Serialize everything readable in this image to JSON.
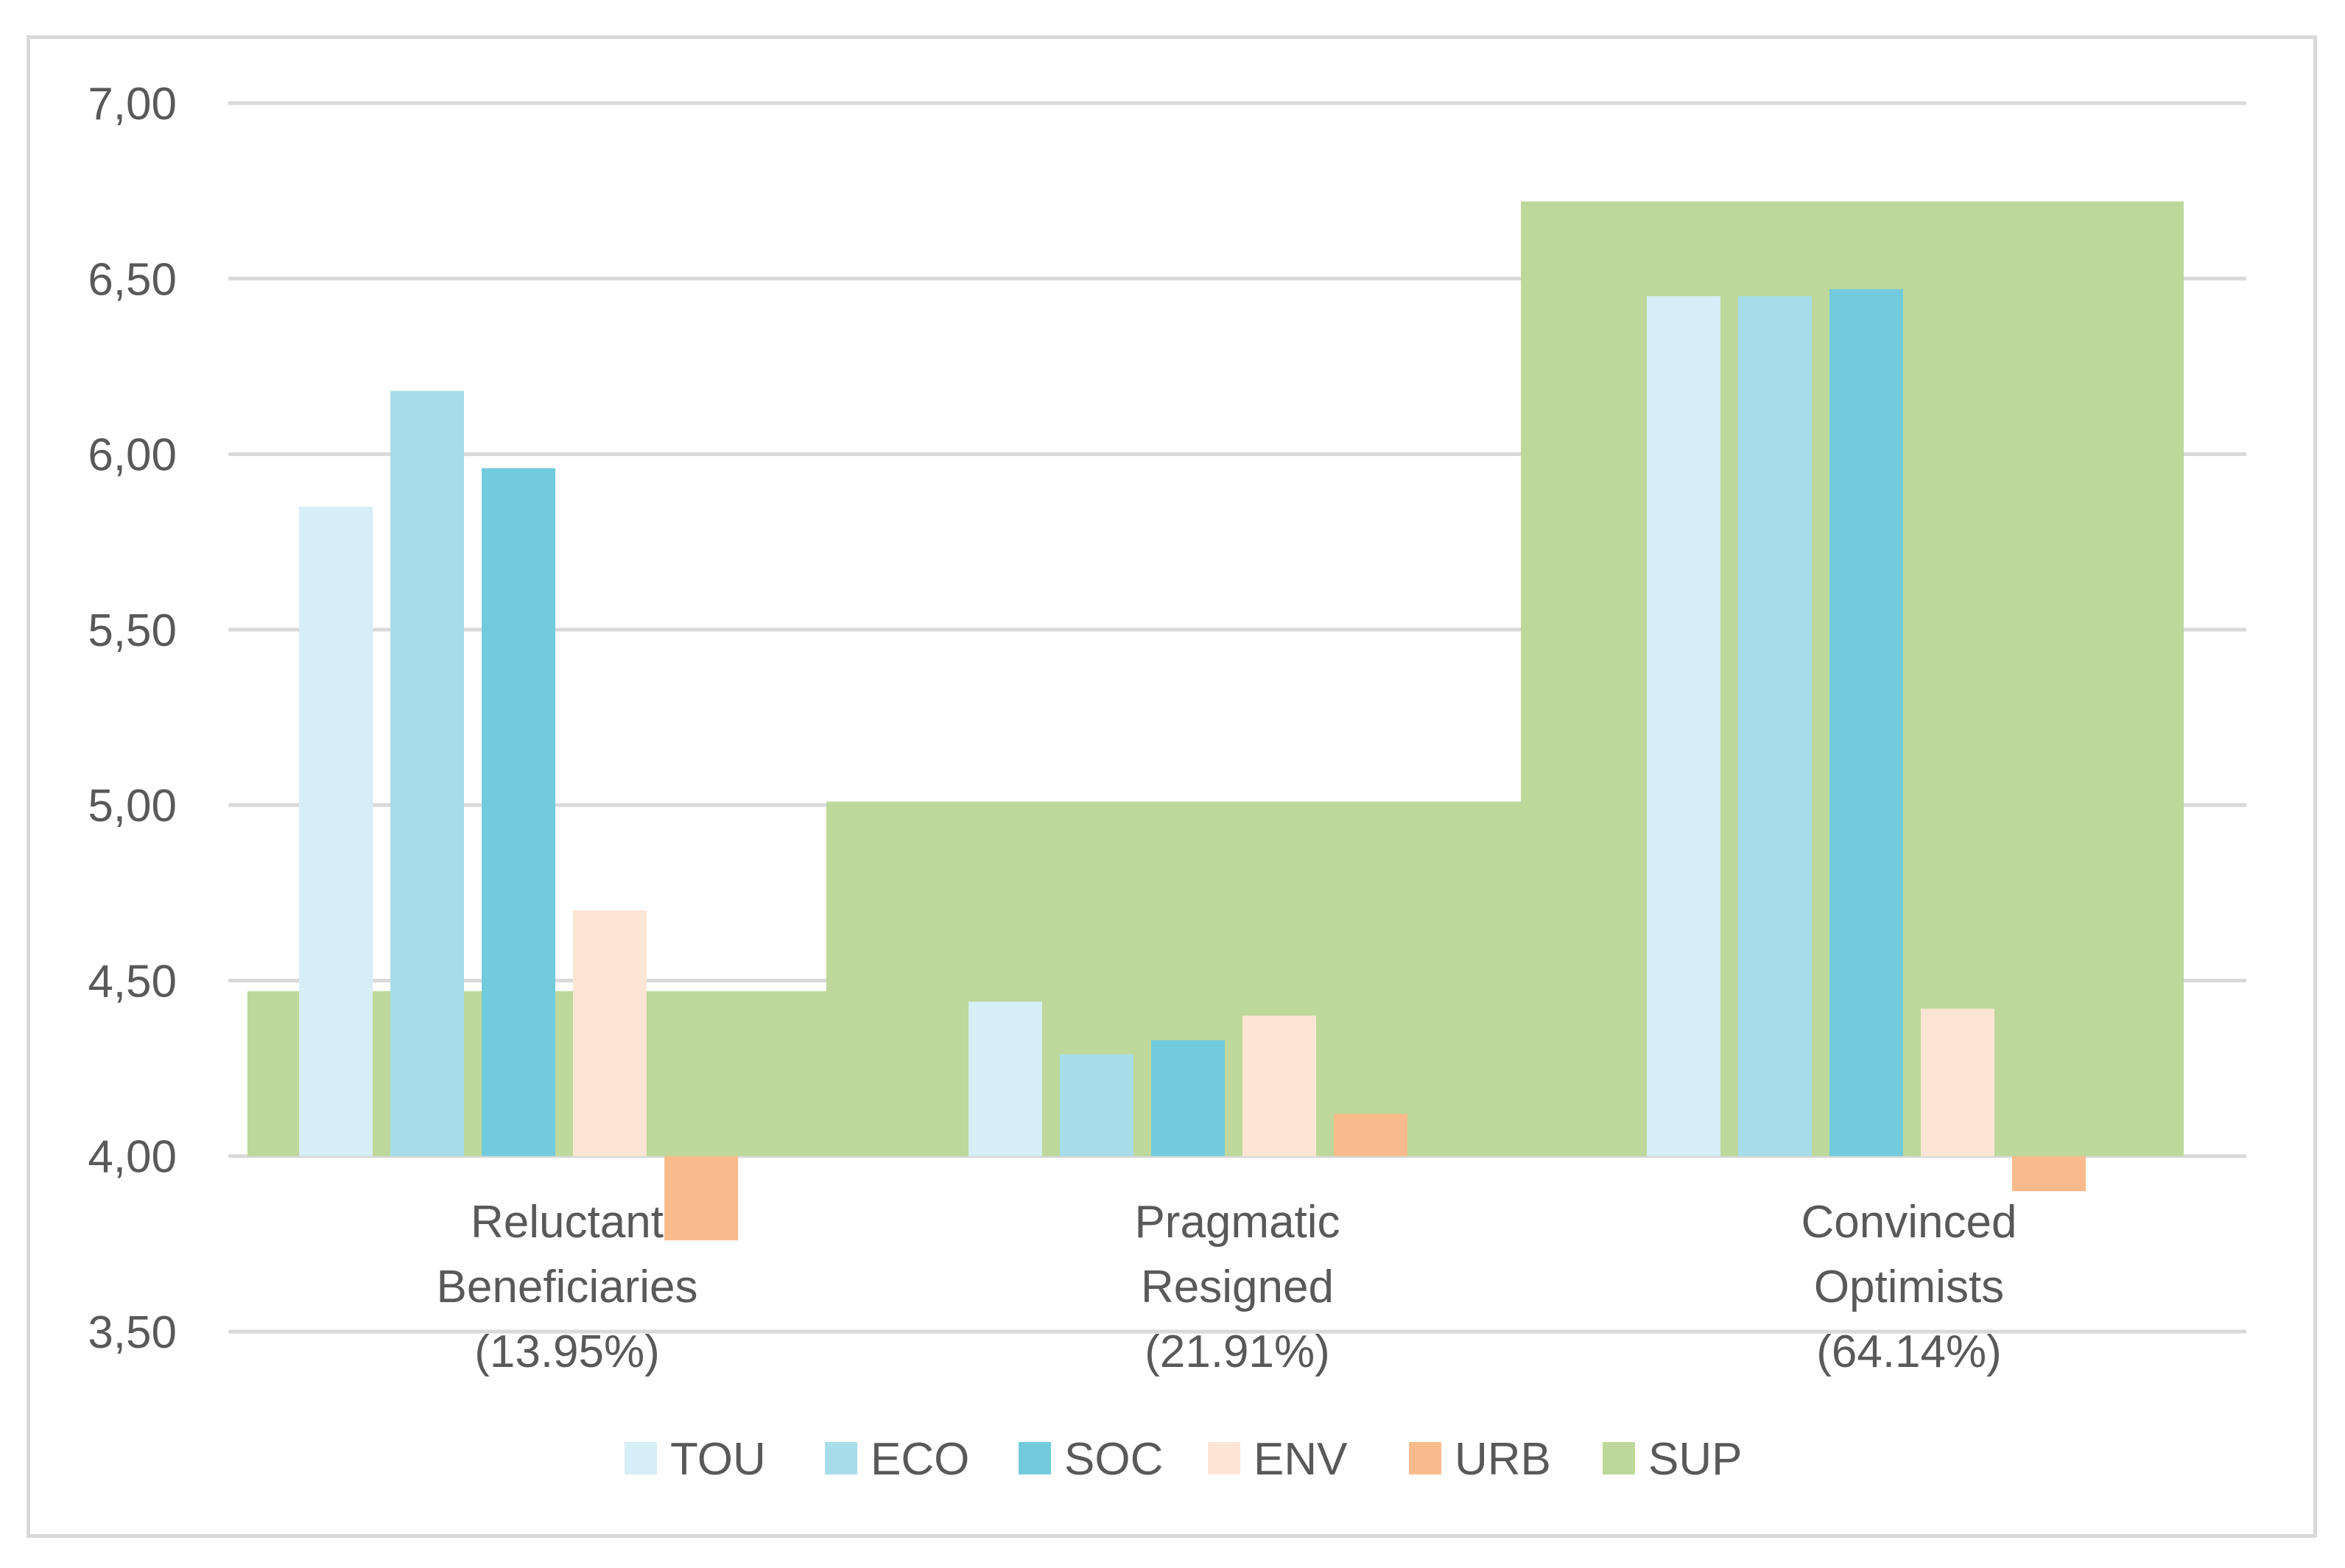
{
  "chart_data": {
    "type": "bar",
    "categories": [
      [
        "Reluctant",
        "Beneficiaries",
        "(13.95%)"
      ],
      [
        "Pragmatic",
        "Resigned",
        "(21.91%)"
      ],
      [
        "Convinced",
        "Optimists",
        "(64.14%)"
      ]
    ],
    "category_shares": [
      13.95,
      21.91,
      64.14
    ],
    "baseline": 4.0,
    "ylim": [
      3.5,
      7.0
    ],
    "yticks": [
      "3,50",
      "4,00",
      "4,50",
      "5,00",
      "5,50",
      "6,00",
      "6,50",
      "7,00"
    ],
    "ytick_values": [
      3.5,
      4.0,
      4.5,
      5.0,
      5.5,
      6.0,
      6.5,
      7.0
    ],
    "grid": true,
    "legend_position": "bottom",
    "series": [
      {
        "name": "TOU",
        "color": "#d6eef5",
        "values": [
          5.85,
          4.44,
          6.45
        ]
      },
      {
        "name": "ECO",
        "color": "#a6dde8",
        "values": [
          6.18,
          4.29,
          6.45
        ]
      },
      {
        "name": "SOC",
        "color": "#72cbdc",
        "values": [
          5.96,
          4.33,
          6.47
        ]
      },
      {
        "name": "ENV",
        "color": "#fde5d5",
        "values": [
          4.7,
          4.4,
          4.42
        ]
      },
      {
        "name": "URB",
        "color": "#f9bb8b",
        "values": [
          3.76,
          4.12,
          3.9
        ]
      },
      {
        "name": "SUP",
        "color": "#bdd89a",
        "values": [
          4.47,
          5.01,
          6.72
        ]
      }
    ]
  }
}
